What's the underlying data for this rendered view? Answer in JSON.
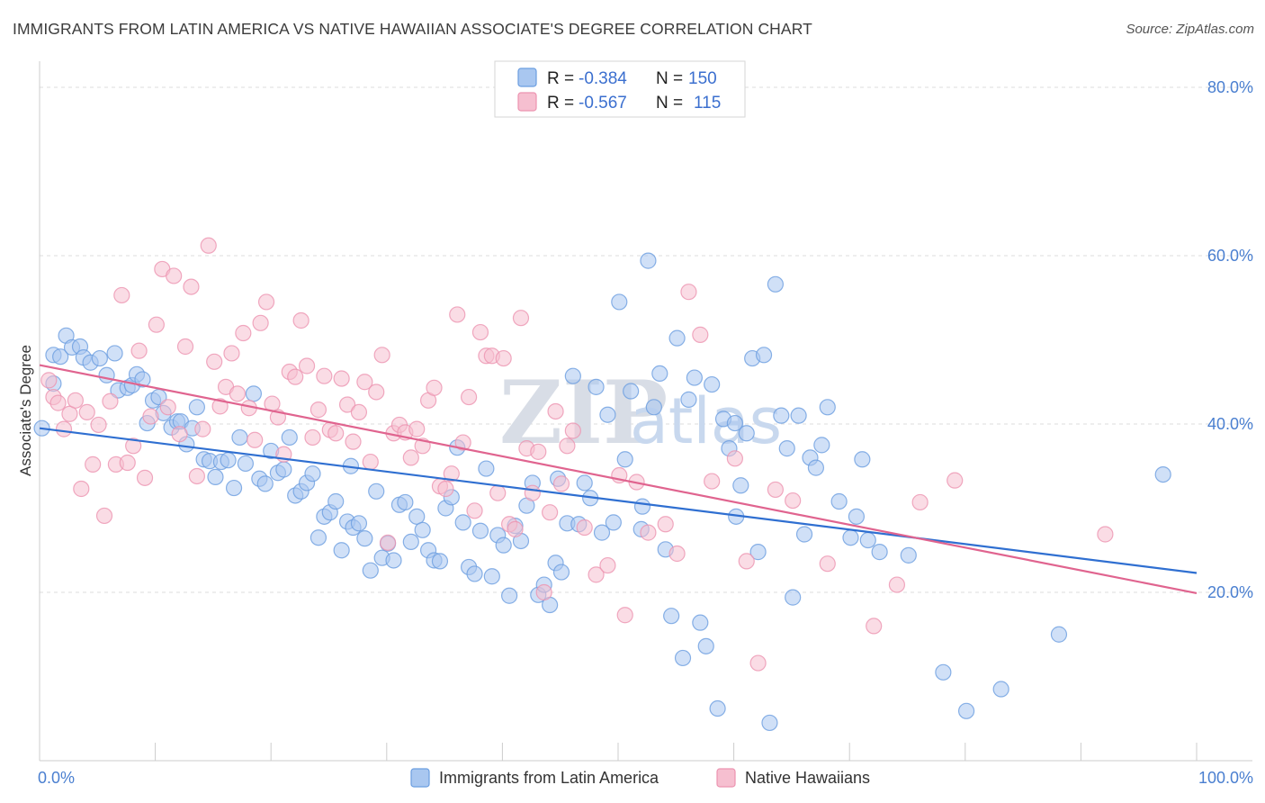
{
  "header": {
    "title": "IMMIGRANTS FROM LATIN AMERICA VS NATIVE HAWAIIAN ASSOCIATE'S DEGREE CORRELATION CHART",
    "source": "Source: ZipAtlas.com"
  },
  "watermark": {
    "zip": "ZIP",
    "atlas": "atlas"
  },
  "legend": {
    "rows": [
      {
        "r_label": "R =",
        "r_value": "-0.384",
        "n_label": "N =",
        "n_value": "150"
      },
      {
        "r_label": "R =",
        "r_value": "-0.567",
        "n_label": "N =",
        "n_value": "115"
      }
    ]
  },
  "bottom_legend": {
    "series1": "Immigrants from Latin America",
    "series2": "Native Hawaiians"
  },
  "colors": {
    "series1_fill": "#a9c7f0",
    "series1_stroke": "#6b9ee0",
    "series1_line": "#2f6fd1",
    "series2_fill": "#f6bfd0",
    "series2_stroke": "#ec93b0",
    "series2_line": "#e0648f",
    "tick_text": "#4a7fd0"
  },
  "chart_data": {
    "type": "scatter",
    "title": "IMMIGRANTS FROM LATIN AMERICA VS NATIVE HAWAIIAN ASSOCIATE'S DEGREE CORRELATION CHART",
    "xlabel": "",
    "ylabel": "Associate's Degree",
    "xlim": [
      0,
      100
    ],
    "ylim": [
      0,
      80
    ],
    "x_tick_labels": [
      "0.0%",
      "100.0%"
    ],
    "y_ticks": [
      20,
      40,
      60,
      80
    ],
    "y_tick_labels": [
      "20.0%",
      "40.0%",
      "60.0%",
      "80.0%"
    ],
    "grid": true,
    "legend_position": "top-center",
    "series": [
      {
        "name": "Immigrants from Latin America",
        "R": -0.384,
        "N": 150,
        "trend": {
          "x": [
            0,
            100
          ],
          "y": [
            39.5,
            22.3
          ]
        },
        "points": [
          [
            0.2,
            39.5
          ],
          [
            1.2,
            44.8
          ],
          [
            1.2,
            48.2
          ],
          [
            1.8,
            48.0
          ],
          [
            2.3,
            50.5
          ],
          [
            2.8,
            49.1
          ],
          [
            3.5,
            49.2
          ],
          [
            3.8,
            47.9
          ],
          [
            4.4,
            47.3
          ],
          [
            5.2,
            47.8
          ],
          [
            5.8,
            45.8
          ],
          [
            6.5,
            48.4
          ],
          [
            6.8,
            44.0
          ],
          [
            7.6,
            44.3
          ],
          [
            8.0,
            44.6
          ],
          [
            8.4,
            45.9
          ],
          [
            8.9,
            45.3
          ],
          [
            9.3,
            40.1
          ],
          [
            9.8,
            42.8
          ],
          [
            10.3,
            43.2
          ],
          [
            10.7,
            41.3
          ],
          [
            11.4,
            39.6
          ],
          [
            11.9,
            40.3
          ],
          [
            12.2,
            40.3
          ],
          [
            12.7,
            37.6
          ],
          [
            13.2,
            39.5
          ],
          [
            13.6,
            42.0
          ],
          [
            14.2,
            35.8
          ],
          [
            14.7,
            35.6
          ],
          [
            15.2,
            33.7
          ],
          [
            15.7,
            35.5
          ],
          [
            16.3,
            35.7
          ],
          [
            16.8,
            32.4
          ],
          [
            17.3,
            38.4
          ],
          [
            17.8,
            35.3
          ],
          [
            18.5,
            43.6
          ],
          [
            19.0,
            33.5
          ],
          [
            19.5,
            32.9
          ],
          [
            20.0,
            36.8
          ],
          [
            20.6,
            34.2
          ],
          [
            21.1,
            34.6
          ],
          [
            21.6,
            38.4
          ],
          [
            22.1,
            31.5
          ],
          [
            22.6,
            32.0
          ],
          [
            23.1,
            33.0
          ],
          [
            23.6,
            34.1
          ],
          [
            24.1,
            26.5
          ],
          [
            24.6,
            29.0
          ],
          [
            25.1,
            29.5
          ],
          [
            25.6,
            30.8
          ],
          [
            26.1,
            25.0
          ],
          [
            26.6,
            28.4
          ],
          [
            27.1,
            27.7
          ],
          [
            27.6,
            28.2
          ],
          [
            28.1,
            26.4
          ],
          [
            28.6,
            22.6
          ],
          [
            29.1,
            32.0
          ],
          [
            29.6,
            24.1
          ],
          [
            30.1,
            25.8
          ],
          [
            30.6,
            23.8
          ],
          [
            31.1,
            30.4
          ],
          [
            31.6,
            30.7
          ],
          [
            32.1,
            26.0
          ],
          [
            32.6,
            29.0
          ],
          [
            33.1,
            27.4
          ],
          [
            33.6,
            25.0
          ],
          [
            34.1,
            23.8
          ],
          [
            34.6,
            23.7
          ],
          [
            35.1,
            30.0
          ],
          [
            35.6,
            31.3
          ],
          [
            36.1,
            37.2
          ],
          [
            36.6,
            28.3
          ],
          [
            37.1,
            23.0
          ],
          [
            37.6,
            22.2
          ],
          [
            38.1,
            27.3
          ],
          [
            38.6,
            34.7
          ],
          [
            39.1,
            21.9
          ],
          [
            39.6,
            26.8
          ],
          [
            40.1,
            25.6
          ],
          [
            40.6,
            19.6
          ],
          [
            41.1,
            27.9
          ],
          [
            41.6,
            26.1
          ],
          [
            42.1,
            30.3
          ],
          [
            42.6,
            33.0
          ],
          [
            43.1,
            19.7
          ],
          [
            43.6,
            20.9
          ],
          [
            44.1,
            18.5
          ],
          [
            44.6,
            23.5
          ],
          [
            45.1,
            22.4
          ],
          [
            45.6,
            28.2
          ],
          [
            46.1,
            45.7
          ],
          [
            46.6,
            28.1
          ],
          [
            47.1,
            33.0
          ],
          [
            47.6,
            31.2
          ],
          [
            48.1,
            44.4
          ],
          [
            48.6,
            27.1
          ],
          [
            49.1,
            41.1
          ],
          [
            49.6,
            28.3
          ],
          [
            50.1,
            54.5
          ],
          [
            50.6,
            35.8
          ],
          [
            51.1,
            43.9
          ],
          [
            52.1,
            30.2
          ],
          [
            52.6,
            59.4
          ],
          [
            53.1,
            42.0
          ],
          [
            53.6,
            46.0
          ],
          [
            54.1,
            25.1
          ],
          [
            54.6,
            17.2
          ],
          [
            55.1,
            50.2
          ],
          [
            55.6,
            12.2
          ],
          [
            56.1,
            42.9
          ],
          [
            56.6,
            45.5
          ],
          [
            57.1,
            16.4
          ],
          [
            57.6,
            13.6
          ],
          [
            58.1,
            44.7
          ],
          [
            58.6,
            6.2
          ],
          [
            59.1,
            40.6
          ],
          [
            59.6,
            37.1
          ],
          [
            60.1,
            40.1
          ],
          [
            60.6,
            32.7
          ],
          [
            61.1,
            38.9
          ],
          [
            61.6,
            47.8
          ],
          [
            62.1,
            24.8
          ],
          [
            62.6,
            48.2
          ],
          [
            63.1,
            4.5
          ],
          [
            63.6,
            56.6
          ],
          [
            64.1,
            41.0
          ],
          [
            64.6,
            37.1
          ],
          [
            65.1,
            19.4
          ],
          [
            65.6,
            41.0
          ],
          [
            66.1,
            26.9
          ],
          [
            66.6,
            36.0
          ],
          [
            67.1,
            34.8
          ],
          [
            67.6,
            37.5
          ],
          [
            68.1,
            42.0
          ],
          [
            69.1,
            30.8
          ],
          [
            70.1,
            26.5
          ],
          [
            70.6,
            29.0
          ],
          [
            71.1,
            35.8
          ],
          [
            71.6,
            26.2
          ],
          [
            72.6,
            24.8
          ],
          [
            75.1,
            24.4
          ],
          [
            78.1,
            10.5
          ],
          [
            80.1,
            5.9
          ],
          [
            83.1,
            8.5
          ],
          [
            88.1,
            15.0
          ],
          [
            97.1,
            34.0
          ],
          [
            44.8,
            33.5
          ],
          [
            26.9,
            35.0
          ],
          [
            52.0,
            27.5
          ],
          [
            60.2,
            29.0
          ]
        ]
      },
      {
        "name": "Native Hawaiians",
        "R": -0.567,
        "N": 115,
        "trend": {
          "x": [
            0,
            100
          ],
          "y": [
            47.0,
            19.9
          ]
        },
        "points": [
          [
            0.8,
            45.2
          ],
          [
            1.2,
            43.2
          ],
          [
            1.6,
            42.5
          ],
          [
            2.1,
            39.4
          ],
          [
            2.6,
            41.2
          ],
          [
            3.1,
            42.8
          ],
          [
            3.6,
            32.3
          ],
          [
            4.1,
            41.4
          ],
          [
            4.6,
            35.2
          ],
          [
            5.1,
            39.9
          ],
          [
            5.6,
            29.1
          ],
          [
            6.1,
            42.7
          ],
          [
            6.6,
            35.2
          ],
          [
            7.1,
            55.3
          ],
          [
            7.6,
            35.4
          ],
          [
            8.1,
            37.4
          ],
          [
            8.6,
            48.7
          ],
          [
            9.1,
            33.6
          ],
          [
            9.6,
            40.9
          ],
          [
            10.1,
            51.8
          ],
          [
            10.6,
            58.4
          ],
          [
            11.1,
            42.0
          ],
          [
            11.6,
            57.6
          ],
          [
            12.1,
            38.8
          ],
          [
            12.6,
            49.2
          ],
          [
            13.1,
            56.3
          ],
          [
            13.6,
            33.8
          ],
          [
            14.1,
            39.4
          ],
          [
            14.6,
            61.2
          ],
          [
            15.1,
            47.4
          ],
          [
            15.6,
            42.1
          ],
          [
            16.1,
            44.4
          ],
          [
            16.6,
            48.4
          ],
          [
            17.1,
            43.6
          ],
          [
            17.6,
            50.8
          ],
          [
            18.1,
            41.9
          ],
          [
            18.6,
            38.1
          ],
          [
            19.1,
            52.0
          ],
          [
            19.6,
            54.5
          ],
          [
            20.1,
            42.4
          ],
          [
            20.6,
            40.8
          ],
          [
            21.1,
            36.4
          ],
          [
            21.6,
            46.2
          ],
          [
            22.1,
            45.6
          ],
          [
            22.6,
            52.3
          ],
          [
            23.1,
            46.9
          ],
          [
            23.6,
            38.4
          ],
          [
            24.1,
            41.7
          ],
          [
            24.6,
            45.7
          ],
          [
            25.1,
            39.3
          ],
          [
            25.6,
            38.9
          ],
          [
            26.1,
            45.4
          ],
          [
            26.6,
            42.3
          ],
          [
            27.1,
            37.9
          ],
          [
            27.6,
            41.4
          ],
          [
            28.1,
            45.0
          ],
          [
            28.6,
            35.5
          ],
          [
            29.1,
            43.8
          ],
          [
            29.6,
            48.2
          ],
          [
            30.1,
            25.9
          ],
          [
            30.6,
            38.9
          ],
          [
            31.1,
            39.9
          ],
          [
            31.6,
            39.0
          ],
          [
            32.1,
            36.0
          ],
          [
            32.6,
            39.4
          ],
          [
            33.1,
            37.4
          ],
          [
            33.6,
            42.8
          ],
          [
            34.1,
            44.3
          ],
          [
            34.6,
            32.6
          ],
          [
            35.1,
            32.3
          ],
          [
            35.6,
            34.1
          ],
          [
            36.1,
            53.0
          ],
          [
            36.6,
            37.8
          ],
          [
            37.1,
            43.2
          ],
          [
            37.6,
            29.7
          ],
          [
            38.1,
            50.9
          ],
          [
            38.6,
            48.1
          ],
          [
            39.1,
            48.1
          ],
          [
            39.6,
            31.8
          ],
          [
            40.1,
            47.8
          ],
          [
            40.6,
            28.1
          ],
          [
            41.1,
            27.5
          ],
          [
            41.6,
            52.6
          ],
          [
            42.1,
            37.1
          ],
          [
            42.6,
            31.8
          ],
          [
            43.1,
            36.7
          ],
          [
            43.6,
            20.0
          ],
          [
            44.1,
            29.5
          ],
          [
            44.6,
            41.5
          ],
          [
            45.1,
            32.9
          ],
          [
            45.6,
            37.4
          ],
          [
            46.1,
            39.2
          ],
          [
            47.1,
            27.7
          ],
          [
            48.1,
            22.1
          ],
          [
            49.1,
            23.2
          ],
          [
            50.1,
            33.9
          ],
          [
            50.6,
            17.3
          ],
          [
            51.6,
            33.1
          ],
          [
            52.6,
            27.1
          ],
          [
            54.1,
            28.1
          ],
          [
            55.1,
            24.6
          ],
          [
            56.1,
            55.7
          ],
          [
            57.1,
            50.6
          ],
          [
            58.1,
            33.2
          ],
          [
            60.1,
            35.9
          ],
          [
            61.1,
            23.7
          ],
          [
            62.1,
            11.6
          ],
          [
            63.6,
            32.2
          ],
          [
            65.1,
            30.9
          ],
          [
            68.1,
            23.4
          ],
          [
            72.1,
            16.0
          ],
          [
            74.1,
            20.9
          ],
          [
            76.1,
            30.7
          ],
          [
            79.1,
            33.3
          ],
          [
            92.1,
            26.9
          ]
        ]
      }
    ]
  }
}
